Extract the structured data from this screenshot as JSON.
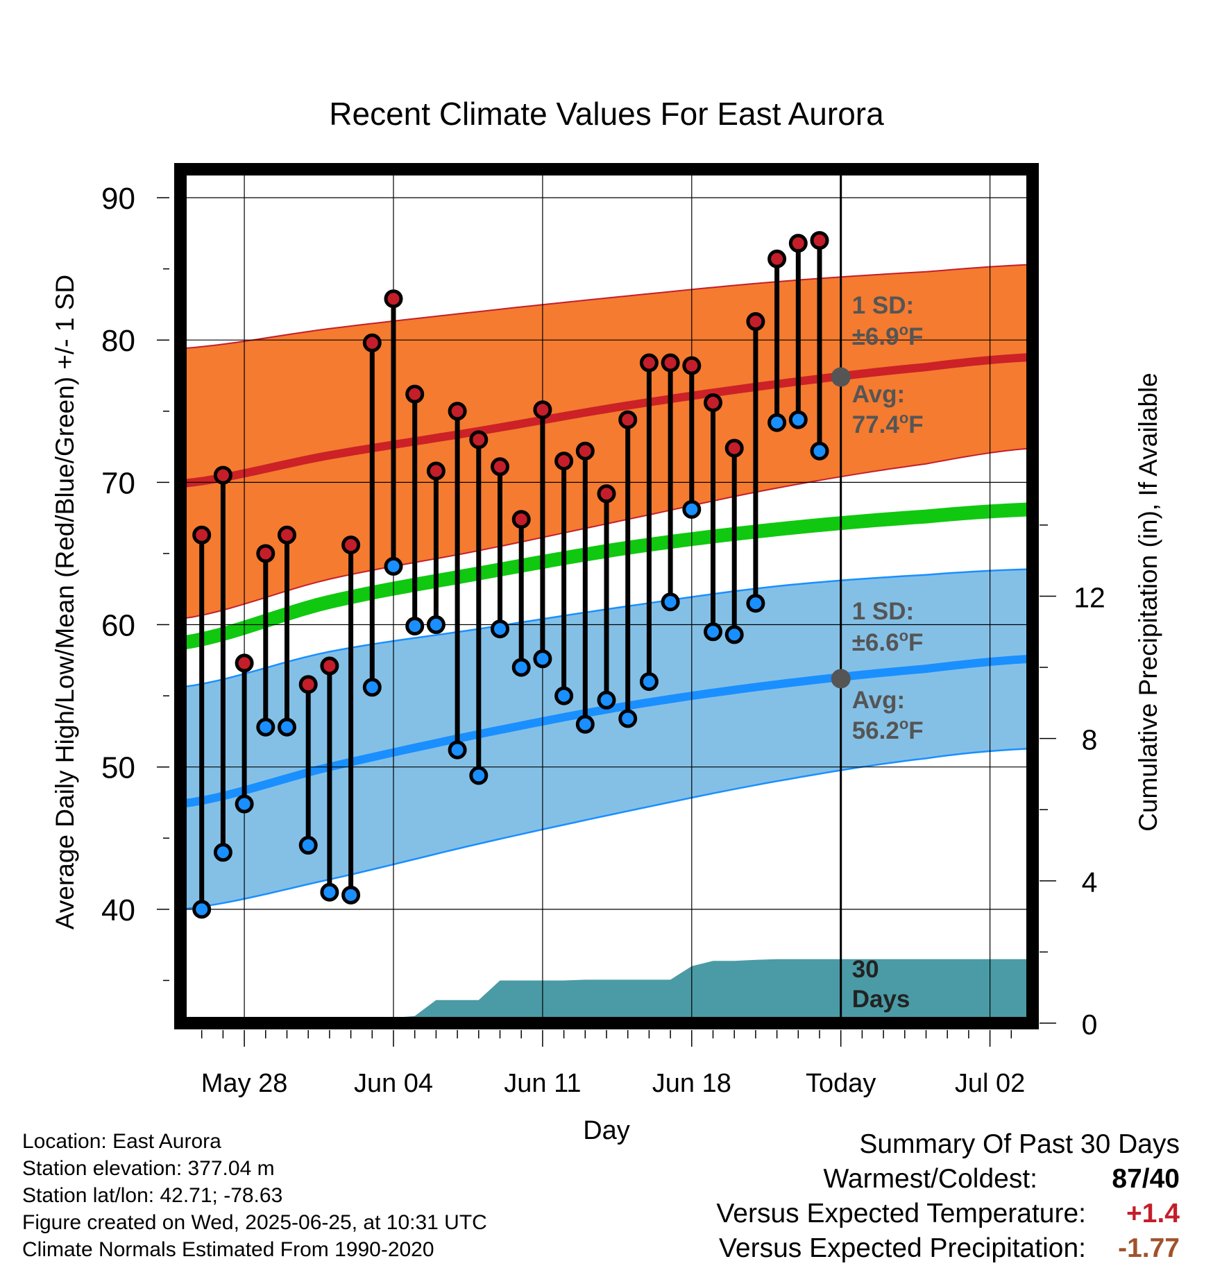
{
  "chart_data": {
    "type": "line",
    "title": "Recent Climate Values For East Aurora",
    "xlabel": "Day",
    "ylabel": "Average Daily High/Low/Mean (Red/Blue/Green) +/- 1 SD",
    "y2label": "Cumulative Precipitation (in), If Available",
    "ylim": [
      32,
      92
    ],
    "y_ticks": [
      40,
      50,
      60,
      70,
      80,
      90
    ],
    "y2lim": [
      0,
      24
    ],
    "y2_ticks": [
      0,
      4,
      8,
      12
    ],
    "x_tick_labels": [
      "May 28",
      "Jun 04",
      "Jun 11",
      "Jun 18",
      "Today",
      "Jul 02"
    ],
    "x_range": [
      "2025-05-25",
      "2025-07-04"
    ],
    "grid": true,
    "today": "2025-06-25",
    "normals": {
      "dates": [
        "2025-05-25",
        "2025-06-01",
        "2025-06-08",
        "2025-06-15",
        "2025-06-22",
        "2025-06-29",
        "2025-07-04"
      ],
      "high_avg": [
        69.9,
        71.9,
        73.6,
        75.4,
        76.9,
        78.1,
        78.8
      ],
      "high_upper": [
        79.4,
        80.8,
        82.0,
        83.1,
        84.1,
        84.8,
        85.3
      ],
      "high_lower": [
        60.4,
        63.2,
        65.2,
        67.4,
        69.6,
        71.3,
        72.4
      ],
      "mean_avg": [
        58.7,
        61.6,
        63.6,
        65.4,
        66.7,
        67.6,
        68.1
      ],
      "low_avg": [
        47.4,
        50.0,
        52.3,
        54.3,
        55.8,
        56.9,
        57.6
      ],
      "low_upper": [
        55.6,
        58.1,
        59.7,
        61.3,
        62.7,
        63.5,
        63.9
      ],
      "low_lower": [
        40.0,
        42.1,
        44.6,
        46.9,
        49.0,
        50.6,
        51.3
      ]
    },
    "series": [
      {
        "name": "High",
        "color": "#c41e2a",
        "dates": [
          "2025-05-26",
          "2025-05-27",
          "2025-05-28",
          "2025-05-29",
          "2025-05-30",
          "2025-05-31",
          "2025-06-01",
          "2025-06-02",
          "2025-06-03",
          "2025-06-04",
          "2025-06-05",
          "2025-06-06",
          "2025-06-07",
          "2025-06-08",
          "2025-06-09",
          "2025-06-10",
          "2025-06-11",
          "2025-06-12",
          "2025-06-13",
          "2025-06-14",
          "2025-06-15",
          "2025-06-16",
          "2025-06-17",
          "2025-06-18",
          "2025-06-19",
          "2025-06-20",
          "2025-06-21",
          "2025-06-22",
          "2025-06-23",
          "2025-06-24"
        ],
        "values": [
          66.3,
          70.5,
          57.3,
          65.0,
          66.3,
          55.8,
          57.1,
          65.6,
          79.8,
          82.9,
          76.2,
          70.8,
          75.0,
          73.0,
          71.1,
          67.4,
          75.1,
          71.5,
          72.2,
          69.2,
          74.4,
          78.4,
          78.4,
          78.2,
          75.6,
          72.4,
          81.3,
          85.7,
          86.8,
          87.0
        ]
      },
      {
        "name": "Low",
        "color": "#1a8fff",
        "dates": [
          "2025-05-26",
          "2025-05-27",
          "2025-05-28",
          "2025-05-29",
          "2025-05-30",
          "2025-05-31",
          "2025-06-01",
          "2025-06-02",
          "2025-06-03",
          "2025-06-04",
          "2025-06-05",
          "2025-06-06",
          "2025-06-07",
          "2025-06-08",
          "2025-06-09",
          "2025-06-10",
          "2025-06-11",
          "2025-06-12",
          "2025-06-13",
          "2025-06-14",
          "2025-06-15",
          "2025-06-16",
          "2025-06-17",
          "2025-06-18",
          "2025-06-19",
          "2025-06-20",
          "2025-06-21",
          "2025-06-22",
          "2025-06-23",
          "2025-06-24"
        ],
        "values": [
          40.0,
          44.0,
          47.4,
          52.8,
          52.8,
          44.5,
          41.2,
          41.0,
          55.6,
          64.1,
          59.9,
          60.0,
          51.2,
          49.4,
          59.7,
          57.0,
          57.6,
          55.0,
          53.0,
          54.7,
          53.4,
          56.0,
          61.6,
          68.1,
          59.5,
          59.3,
          61.5,
          74.2,
          74.4,
          72.2
        ]
      },
      {
        "name": "Cumulative Precipitation",
        "color": "#4a9ba5",
        "dates": [
          "2025-05-25",
          "2025-05-27",
          "2025-05-28",
          "2025-05-30",
          "2025-05-31",
          "2025-06-02",
          "2025-06-03",
          "2025-06-04",
          "2025-06-05",
          "2025-06-06",
          "2025-06-07",
          "2025-06-08",
          "2025-06-09",
          "2025-06-10",
          "2025-06-11",
          "2025-06-12",
          "2025-06-13",
          "2025-06-14",
          "2025-06-15",
          "2025-06-16",
          "2025-06-17",
          "2025-06-18",
          "2025-06-19",
          "2025-06-20",
          "2025-06-21",
          "2025-06-22",
          "2025-07-04"
        ],
        "values": [
          0.0,
          0.0,
          0.1,
          0.1,
          0.15,
          0.15,
          0.15,
          0.15,
          0.2,
          0.65,
          0.65,
          0.65,
          1.2,
          1.2,
          1.2,
          1.2,
          1.22,
          1.22,
          1.22,
          1.22,
          1.22,
          1.6,
          1.75,
          1.75,
          1.78,
          1.8,
          1.8
        ]
      }
    ],
    "annotations": {
      "high_sd_label": "1 SD:",
      "high_sd_value": "±6.9",
      "high_avg_label": "Avg:",
      "high_avg_value": "77.4",
      "low_sd_label": "1 SD:",
      "low_sd_value": "±6.6",
      "low_avg_label": "Avg:",
      "low_avg_value": "56.2",
      "degree_symbol": "o",
      "unit": "F",
      "today_high_avg": 77.4,
      "today_low_avg": 56.2,
      "days_label_1": "30",
      "days_label_2": "Days"
    }
  },
  "info": {
    "location": "Location: East Aurora",
    "elevation": "Station elevation: 377.04 m",
    "latlon": "Station lat/lon: 42.71; -78.63",
    "created": "Figure created on Wed, 2025-06-25, at 10:31 UTC",
    "normals": "Climate Normals Estimated From 1990-2020"
  },
  "summary": {
    "title": "Summary Of Past 30 Days",
    "warmest_label": "Warmest/Coldest:",
    "warmest_value": "87/40",
    "temp_label": "Versus Expected Temperature:",
    "temp_value": "+1.4",
    "temp_color": "#c41e2a",
    "precip_label": "Versus Expected Precipitation:",
    "precip_value": "-1.77",
    "precip_color": "#a0522d"
  }
}
